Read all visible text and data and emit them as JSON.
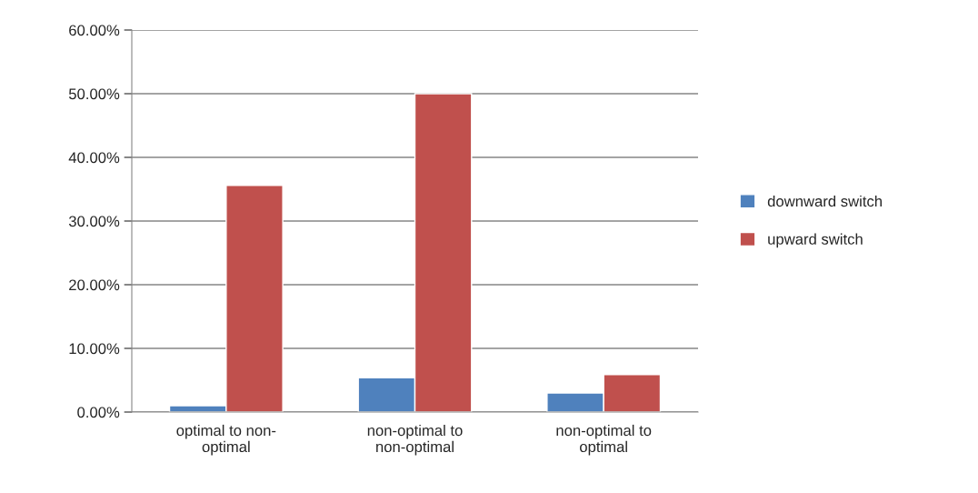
{
  "chart_data": {
    "type": "bar",
    "categories": [
      "optimal to non-\noptimal",
      "non-optimal to\nnon-optimal",
      "non-optimal to\noptimal"
    ],
    "series": [
      {
        "name": "downward switch",
        "color": "#4f81bd",
        "values": [
          1.0,
          5.4,
          3.0
        ]
      },
      {
        "name": "upward switch",
        "color": "#c0504d",
        "values": [
          35.6,
          50.0,
          5.9
        ]
      }
    ],
    "ylim": [
      0,
      60
    ],
    "yticks": [
      {
        "value": 0,
        "label": "0.00%"
      },
      {
        "value": 10,
        "label": "10.00%"
      },
      {
        "value": 20,
        "label": "20.00%"
      },
      {
        "value": 30,
        "label": "30.00%"
      },
      {
        "value": 40,
        "label": "40.00%"
      },
      {
        "value": 50,
        "label": "50.00%"
      },
      {
        "value": 60,
        "label": "60.00%"
      }
    ],
    "grid": "y",
    "legend": "right"
  }
}
